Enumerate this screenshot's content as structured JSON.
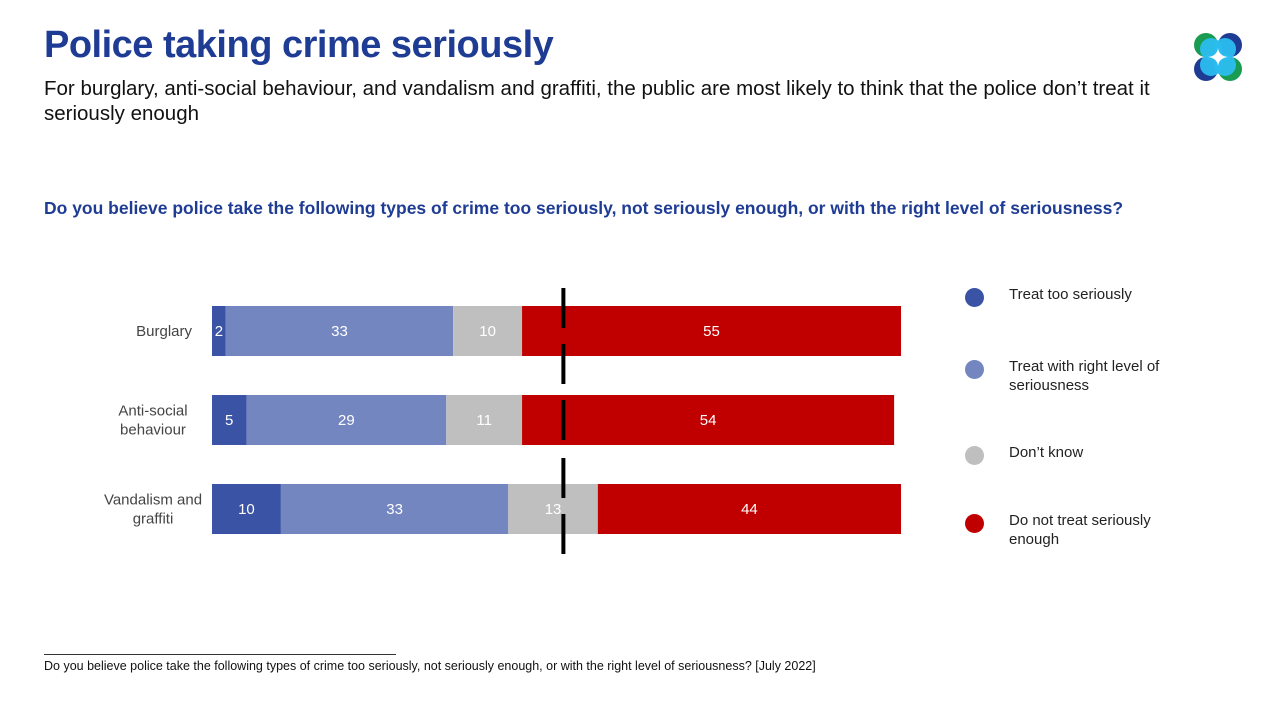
{
  "header": {
    "title": "Police taking crime seriously",
    "subtitle": "For burglary, anti-social behaviour, and vandalism and graffiti, the public are most likely to think that the police don’t treat it seriously enough",
    "question": "Do you believe police take the following types of crime too seriously, not seriously enough, or with the right level of seriousness?"
  },
  "footnote": "Do you believe police take the following types of crime too seriously, not seriously enough, or with the right level of seriousness? [July 2022]",
  "chart_data": {
    "type": "bar",
    "orientation": "horizontal",
    "stacked": true,
    "categories": [
      [
        "Burglary"
      ],
      [
        "Anti-social",
        "behaviour"
      ],
      [
        "Vandalism and",
        "graffiti"
      ]
    ],
    "series": [
      {
        "name": "Treat too seriously",
        "color": "#3a53a4",
        "values": [
          2,
          5,
          10
        ]
      },
      {
        "name": "Treat with right level of seriousness",
        "color": "#7386c0",
        "values": [
          33,
          29,
          33
        ]
      },
      {
        "name": "Don’t know",
        "color": "#bfbfbf",
        "values": [
          10,
          11,
          13
        ]
      },
      {
        "name": "Do not treat seriously enough",
        "color": "#c00000",
        "values": [
          55,
          54,
          44
        ]
      }
    ],
    "xlim": [
      0,
      100
    ],
    "reference_line": {
      "x": 51,
      "style": "dashed",
      "color": "#000000"
    },
    "legend": "right",
    "data_labels": true,
    "grid": false
  }
}
